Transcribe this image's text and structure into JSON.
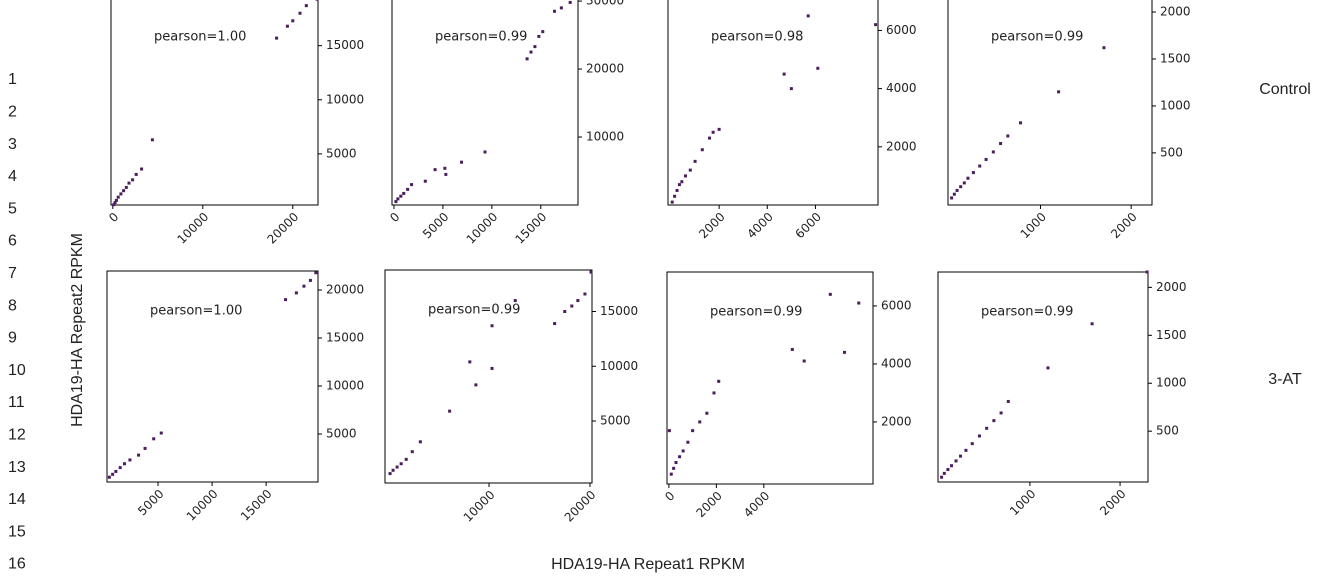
{
  "line_numbers": [
    1,
    2,
    3,
    4,
    5,
    6,
    7,
    8,
    9,
    10,
    11,
    12,
    13,
    14,
    15,
    16
  ],
  "y_label": "HDA19-HA Repeat2 RPKM",
  "x_label": "HDA19-HA Repeat1 RPKM",
  "row_labels": [
    "Control",
    "3-AT"
  ],
  "chart_data": [
    {
      "type": "scatter",
      "annotation": "pearson=1.00",
      "color": "#4b1d5c",
      "x": [
        100,
        250,
        400,
        600,
        900,
        1200,
        1500,
        1800,
        2200,
        2600,
        3200,
        4400,
        18200,
        19400,
        20000,
        20800,
        21500,
        22700
      ],
      "values": [
        300,
        500,
        700,
        1000,
        1300,
        1600,
        1900,
        2300,
        2600,
        3100,
        3600,
        6300,
        15700,
        16800,
        17300,
        18000,
        18700,
        19300
      ],
      "xlim": [
        -200,
        22800
      ],
      "ylim": [
        275,
        19500
      ],
      "xticks": [
        0,
        10000,
        20000
      ],
      "yticks": [
        5000,
        10000,
        15000
      ]
    },
    {
      "type": "scatter",
      "annotation": "pearson=0.99",
      "color": "#4b1d5c",
      "x": [
        200,
        400,
        700,
        1000,
        1400,
        1800,
        3200,
        4200,
        5200,
        5300,
        6900,
        9300,
        13600,
        14000,
        14400,
        14800,
        15200,
        16400,
        17100,
        18000
      ],
      "values": [
        500,
        900,
        1300,
        1700,
        2300,
        3000,
        3500,
        5200,
        5400,
        4500,
        6300,
        7800,
        21500,
        22500,
        23300,
        24800,
        25500,
        28500,
        29000,
        29800
      ],
      "xlim": [
        -200,
        18800
      ],
      "ylim": [
        0,
        30600
      ],
      "xticks": [
        0,
        5000,
        10000,
        15000
      ],
      "yticks": [
        10000,
        20000,
        30000
      ]
    },
    {
      "type": "scatter",
      "annotation": "pearson=0.98",
      "color": "#4b1d5c",
      "x": [
        50,
        150,
        250,
        350,
        450,
        600,
        800,
        1000,
        1300,
        1600,
        1750,
        2000,
        4700,
        5000,
        5700,
        6100,
        8500
      ],
      "values": [
        100,
        300,
        500,
        700,
        800,
        1000,
        1200,
        1500,
        1900,
        2300,
        2500,
        2600,
        4500,
        4000,
        6500,
        4700,
        6200
      ],
      "xlim": [
        -125,
        8600
      ],
      "ylim": [
        0,
        7150
      ],
      "xticks": [
        2000,
        4000,
        6000
      ],
      "yticks": [
        2000,
        4000,
        6000
      ]
    },
    {
      "type": "scatter",
      "annotation": "pearson=0.99",
      "color": "#4b1d5c",
      "x": [
        20,
        50,
        80,
        120,
        160,
        200,
        260,
        330,
        400,
        480,
        560,
        640,
        780,
        1200,
        1700,
        2200
      ],
      "values": [
        20,
        60,
        100,
        140,
        180,
        230,
        290,
        360,
        430,
        510,
        600,
        680,
        820,
        1150,
        1620,
        2150
      ],
      "xlim": [
        -20,
        2230
      ],
      "ylim": [
        -55,
        2160
      ],
      "xticks": [
        1000,
        2000
      ],
      "yticks": [
        500,
        1000,
        1500,
        2000
      ]
    },
    {
      "type": "scatter",
      "annotation": "pearson=1.00",
      "color": "#4b1d5c",
      "x": [
        500,
        800,
        1100,
        1500,
        1900,
        2400,
        3200,
        3800,
        4600,
        5300,
        16800,
        17800,
        18500,
        19100,
        19600
      ],
      "values": [
        500,
        800,
        1100,
        1500,
        1900,
        2300,
        2800,
        3500,
        4500,
        5100,
        19000,
        19700,
        20400,
        21000,
        21800
      ],
      "xlim": [
        280,
        19800
      ],
      "ylim": [
        0,
        21980
      ],
      "xticks": [
        5000,
        10000,
        15000
      ],
      "yticks": [
        5000,
        10000,
        15000,
        20000
      ]
    },
    {
      "type": "scatter",
      "annotation": "pearson=0.99",
      "color": "#4b1d5c",
      "x": [
        200,
        500,
        900,
        1300,
        1800,
        2400,
        3200,
        6100,
        8100,
        8700,
        10300,
        10300,
        12600,
        16500,
        17500,
        18200,
        18800,
        19500,
        20100
      ],
      "values": [
        200,
        500,
        800,
        1100,
        1500,
        2200,
        3100,
        5900,
        10400,
        8300,
        9800,
        13700,
        16000,
        13900,
        15000,
        15500,
        16000,
        16600,
        18600
      ],
      "xlim": [
        -300,
        20200
      ],
      "ylim": [
        -660,
        18790
      ],
      "xticks": [
        10000,
        20000
      ],
      "yticks": [
        5000,
        10000,
        15000
      ]
    },
    {
      "type": "scatter",
      "annotation": "pearson=0.99",
      "color": "#4b1d5c",
      "x": [
        20,
        100,
        200,
        300,
        450,
        600,
        800,
        1000,
        1300,
        1600,
        1900,
        2100,
        5200,
        5700,
        6800,
        7400,
        8000
      ],
      "values": [
        1700,
        200,
        400,
        600,
        800,
        1000,
        1300,
        1700,
        2000,
        2300,
        3000,
        3400,
        4500,
        4100,
        6400,
        4400,
        6100
      ],
      "xlim": [
        -80,
        8600
      ],
      "ylim": [
        -140,
        7170
      ],
      "xticks": [
        0,
        2000,
        4000
      ],
      "yticks": [
        2000,
        4000,
        6000
      ]
    },
    {
      "type": "scatter",
      "annotation": "pearson=0.99",
      "color": "#4b1d5c",
      "x": [
        20,
        50,
        90,
        130,
        180,
        230,
        290,
        360,
        440,
        520,
        600,
        680,
        760,
        1200,
        1690,
        2300
      ],
      "values": [
        20,
        60,
        100,
        140,
        190,
        240,
        300,
        370,
        450,
        530,
        610,
        690,
        810,
        1160,
        1620,
        2160
      ],
      "xlim": [
        -20,
        2310
      ],
      "ylim": [
        -30,
        2160
      ],
      "xticks": [
        1000,
        2000
      ],
      "yticks": [
        500,
        1000,
        1500,
        2000
      ]
    }
  ]
}
